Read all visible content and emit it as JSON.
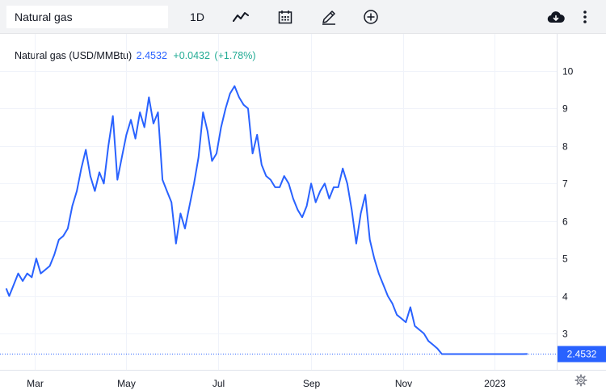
{
  "toolbar": {
    "symbol_input_value": "Natural gas",
    "interval_label": "1D",
    "icons": [
      "line-chart-icon",
      "calendar-icon",
      "pencil-icon",
      "plus-circle-icon",
      "cloud-download-icon",
      "more-vertical-icon"
    ]
  },
  "legend": {
    "symbol": "Natural gas (USD/MMBtu)",
    "value": "2.4532",
    "change": "+0.0432",
    "change_pct": "(+1.78%)"
  },
  "colors": {
    "line": "#2962ff",
    "positive": "#22ab94",
    "grid": "#f0f3fa",
    "last_price_bg": "#2962ff"
  },
  "chart_data": {
    "type": "line",
    "title": "Natural gas (USD/MMBtu)",
    "y_ticks": [
      "10",
      "9",
      "8",
      "7",
      "6",
      "5",
      "4",
      "3"
    ],
    "x_ticks": [
      "Mar",
      "May",
      "Jul",
      "Sep",
      "Nov",
      "2023"
    ],
    "last_price_label": "2.4532",
    "ylim": [
      2.0,
      10.4
    ],
    "grid": true,
    "x": [
      "2022-02-10",
      "2022-02-12",
      "2022-02-15",
      "2022-02-18",
      "2022-02-21",
      "2022-02-24",
      "2022-02-27",
      "2022-03-02",
      "2022-03-05",
      "2022-03-08",
      "2022-03-11",
      "2022-03-14",
      "2022-03-17",
      "2022-03-20",
      "2022-03-23",
      "2022-03-26",
      "2022-03-29",
      "2022-04-01",
      "2022-04-04",
      "2022-04-07",
      "2022-04-10",
      "2022-04-13",
      "2022-04-16",
      "2022-04-19",
      "2022-04-22",
      "2022-04-25",
      "2022-04-28",
      "2022-05-01",
      "2022-05-04",
      "2022-05-07",
      "2022-05-10",
      "2022-05-13",
      "2022-05-16",
      "2022-05-19",
      "2022-05-22",
      "2022-05-25",
      "2022-05-28",
      "2022-05-31",
      "2022-06-03",
      "2022-06-06",
      "2022-06-09",
      "2022-06-12",
      "2022-06-15",
      "2022-06-18",
      "2022-06-21",
      "2022-06-24",
      "2022-06-27",
      "2022-06-30",
      "2022-07-03",
      "2022-07-06",
      "2022-07-09",
      "2022-07-12",
      "2022-07-15",
      "2022-07-18",
      "2022-07-21",
      "2022-07-24",
      "2022-07-27",
      "2022-07-30",
      "2022-08-02",
      "2022-08-05",
      "2022-08-08",
      "2022-08-11",
      "2022-08-14",
      "2022-08-17",
      "2022-08-20",
      "2022-08-23",
      "2022-08-26",
      "2022-08-29",
      "2022-09-01",
      "2022-09-04",
      "2022-09-07",
      "2022-09-10",
      "2022-09-13",
      "2022-09-16",
      "2022-09-19",
      "2022-09-22",
      "2022-09-25",
      "2022-09-28",
      "2022-10-01",
      "2022-10-04",
      "2022-10-07",
      "2022-10-10",
      "2022-10-13",
      "2022-10-16",
      "2022-10-19",
      "2022-10-22",
      "2022-10-25",
      "2022-10-28",
      "2022-10-31",
      "2022-11-03",
      "2022-11-06",
      "2022-11-09",
      "2022-11-12",
      "2022-11-15",
      "2022-11-18",
      "2022-11-21",
      "2022-11-24",
      "2022-11-27",
      "2022-11-30",
      "2022-12-03",
      "2022-12-06",
      "2022-12-09",
      "2022-12-12",
      "2022-12-15",
      "2022-12-18",
      "2022-12-21",
      "2022-12-24",
      "2022-12-27",
      "2022-12-30",
      "2023-01-02",
      "2023-01-05",
      "2023-01-08",
      "2023-01-11",
      "2023-01-14",
      "2023-01-17",
      "2023-01-20",
      "2023-01-23"
    ],
    "y": [
      4.2,
      4.0,
      4.3,
      4.6,
      4.4,
      4.6,
      4.5,
      5.0,
      4.6,
      4.7,
      4.8,
      5.1,
      5.5,
      5.6,
      5.8,
      6.4,
      6.8,
      7.4,
      7.9,
      7.2,
      6.8,
      7.3,
      7.0,
      8.0,
      8.8,
      7.1,
      7.7,
      8.3,
      8.7,
      8.2,
      8.9,
      8.5,
      9.3,
      8.6,
      8.9,
      7.1,
      6.8,
      6.5,
      5.4,
      6.2,
      5.8,
      6.4,
      7.0,
      7.7,
      8.9,
      8.4,
      7.6,
      7.8,
      8.5,
      9.0,
      9.4,
      9.6,
      9.3,
      9.1,
      9.0,
      7.8,
      8.3,
      7.5,
      7.2,
      7.1,
      6.9,
      6.9,
      7.2,
      7.0,
      6.6,
      6.3,
      6.1,
      6.4,
      7.0,
      6.5,
      6.8,
      7.0,
      6.6,
      6.9,
      6.9,
      7.4,
      7.0,
      6.3,
      5.4,
      6.2,
      6.7,
      5.5,
      5.0,
      4.6,
      4.3,
      4.0,
      3.8,
      3.5,
      3.4,
      3.3,
      3.7,
      3.2,
      3.1,
      3.0,
      2.8,
      2.7,
      2.6,
      2.45,
      2.45,
      2.45,
      2.45,
      2.45,
      2.45,
      2.45,
      2.45,
      2.45,
      2.45,
      2.45,
      2.45,
      2.45,
      2.45,
      2.45,
      2.45,
      2.45,
      2.45,
      2.45,
      2.4532
    ]
  }
}
